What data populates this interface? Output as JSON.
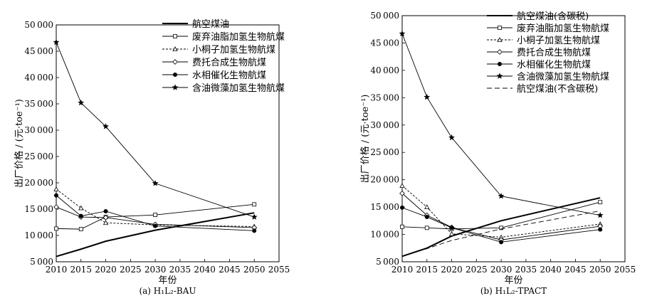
{
  "chart_data": [
    {
      "type": "line",
      "caption": "(a) H₁L₂-BAU",
      "xlabel": "年份",
      "ylabel": "出厂价格 / (元·toe⁻¹)",
      "xlim": [
        2010,
        2055
      ],
      "ylim": [
        5000,
        50000
      ],
      "xticks": [
        2010,
        2015,
        2020,
        2025,
        2030,
        2035,
        2040,
        2045,
        2050,
        2055
      ],
      "yticks": [
        5000,
        10000,
        15000,
        20000,
        25000,
        30000,
        35000,
        40000,
        45000,
        50000
      ],
      "x": [
        2010,
        2015,
        2020,
        2030,
        2050
      ],
      "legend_position": "top-right",
      "series": [
        {
          "name": "航空煤油",
          "style": "thick-solid",
          "marker": "none",
          "values": [
            6000,
            7400,
            8900,
            11000,
            14300
          ]
        },
        {
          "name": "废弃油脂加氢生物航煤",
          "style": "solid",
          "marker": "square",
          "values": [
            11300,
            11200,
            13500,
            13900,
            15900
          ]
        },
        {
          "name": "小桐子加氢生物航煤",
          "style": "dashed",
          "marker": "triangle",
          "values": [
            18800,
            15200,
            12400,
            12000,
            11700
          ]
        },
        {
          "name": "费托合成生物航煤",
          "style": "solid",
          "marker": "diamond",
          "values": [
            15400,
            13500,
            13400,
            12100,
            11500
          ]
        },
        {
          "name": "水相催化生物航煤",
          "style": "solid",
          "marker": "circle",
          "values": [
            17600,
            13700,
            14600,
            11800,
            10900
          ]
        },
        {
          "name": "含油微藻加氢生物航煤",
          "style": "solid",
          "marker": "star",
          "values": [
            46700,
            35200,
            30700,
            19900,
            13500
          ]
        }
      ]
    },
    {
      "type": "line",
      "caption": "(b) H₁L₂-TPACT",
      "xlabel": "年份",
      "ylabel": "出厂价格 / (元·toe⁻¹)",
      "xlim": [
        2010,
        2055
      ],
      "ylim": [
        5000,
        50000
      ],
      "xticks": [
        2010,
        2015,
        2020,
        2025,
        2030,
        2035,
        2040,
        2045,
        2050,
        2055
      ],
      "yticks": [
        5000,
        10000,
        15000,
        20000,
        25000,
        30000,
        35000,
        40000,
        45000,
        50000
      ],
      "x": [
        2010,
        2015,
        2020,
        2030,
        2050
      ],
      "legend_position": "top-right",
      "series": [
        {
          "name": "航空煤油(含碳税)",
          "style": "thick-solid",
          "marker": "none",
          "values": [
            6000,
            7500,
            9700,
            12500,
            16700
          ]
        },
        {
          "name": "废弃油脂加氢生物航煤",
          "style": "solid",
          "marker": "square",
          "values": [
            11400,
            11200,
            11000,
            11200,
            15900
          ]
        },
        {
          "name": "小桐子加氢生物航煤",
          "style": "dashed",
          "marker": "triangle",
          "values": [
            18900,
            15000,
            10100,
            9500,
            11900
          ]
        },
        {
          "name": "费托合成生物航煤",
          "style": "solid",
          "marker": "diamond",
          "values": [
            17500,
            13500,
            11300,
            9000,
            11500
          ]
        },
        {
          "name": "水相催化生物航煤",
          "style": "solid",
          "marker": "circle",
          "values": [
            14900,
            13200,
            11200,
            8600,
            10900
          ]
        },
        {
          "name": "含油微藻加氢生物航煤",
          "style": "solid",
          "marker": "star",
          "values": [
            46700,
            35100,
            27700,
            17000,
            13500
          ]
        },
        {
          "name": "航空煤油(不含碳税)",
          "style": "long-dashed",
          "marker": "none",
          "values": [
            6000,
            7400,
            8900,
            11000,
            14300
          ]
        }
      ]
    }
  ]
}
